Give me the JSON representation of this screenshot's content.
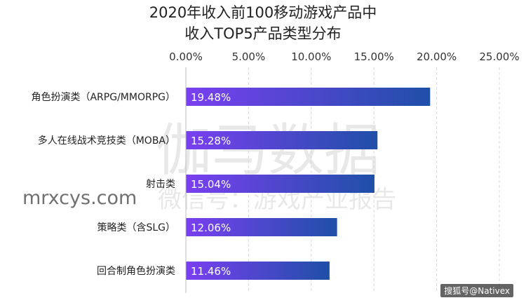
{
  "chart_data": {
    "type": "bar",
    "orientation": "horizontal",
    "title_lines": [
      "2020年收入前100移动游戏产品中",
      "收入TOP5产品类型分布"
    ],
    "categories": [
      "角色扮演类（ARPG/MMORPG）",
      "多人在线战术竞技类（MOBA）",
      "射击类",
      "策略类（含SLG）",
      "回合制角色扮演类"
    ],
    "values": [
      19.48,
      15.28,
      15.04,
      12.06,
      11.46
    ],
    "value_labels": [
      "19.48%",
      "15.28%",
      "15.04%",
      "12.06%",
      "11.46%"
    ],
    "xlim": [
      0,
      25
    ],
    "x_ticks": [
      "0.00%",
      "5.00%",
      "10.00%",
      "15.00%",
      "20.00%",
      "25.00%"
    ],
    "x_axis_position": "top",
    "grid": "dashed-vertical",
    "legend": "none",
    "colors": {
      "bar_start": "#7a3ff0",
      "bar_end": "#1f4fa8",
      "bar_label": "#ffffff",
      "grid": "#d8d8d8",
      "axis": "#bfbfbf"
    }
  },
  "watermark": {
    "large": "伽马数据",
    "small": "微信号：游戏产业报告",
    "site": "mrxcys.com"
  },
  "credit": "搜狐号@Nativex"
}
